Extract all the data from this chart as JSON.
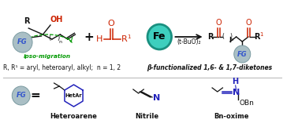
{
  "bg_color": "#ffffff",
  "fg_ball_color": "#aabfc5",
  "fg_ball_edge_color": "#7a9aa0",
  "fg_text_color": "#3355cc",
  "fe_ball_color": "#3ecfbe",
  "fe_ball_edge_color": "#1a9080",
  "red_color": "#cc2200",
  "green_color": "#009900",
  "blue_color": "#2222bb",
  "black_color": "#111111",
  "reaction_text": "(t-BuO)₂",
  "label_top": "R, R¹ = aryl, heteroaryl, alkyl;  n = 1, 2",
  "label_bottom": "β-functionalized 1,6- & 1,7-diketones",
  "ipso_text": "ipso-migration",
  "bottom_labels": [
    "Heteroarene",
    "Nitrile",
    "Bn-oxime"
  ],
  "hetarene_label": "HetAr"
}
